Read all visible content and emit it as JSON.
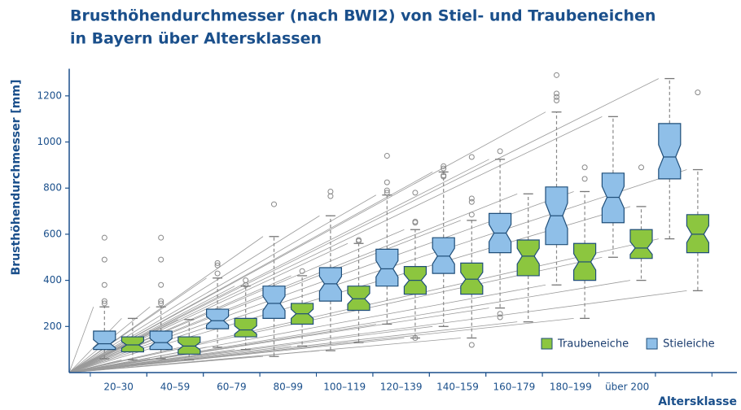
{
  "chart_data": {
    "type": "box",
    "title": [
      "Brusthöhendurchmesser (nach BWI2) von Stiel- und Traubeneichen",
      "in Bayern über Altersklassen"
    ],
    "y_label": "Brusthöhendurchmesser [mm]",
    "x_label": "Altersklasse",
    "categories": [
      "20–30",
      "40–59",
      "60–79",
      "80–99",
      "100–119",
      "120–139",
      "140–159",
      "160–179",
      "180–199",
      "über 200",
      null
    ],
    "ylim": [
      0,
      1300
    ],
    "yticks": [
      200,
      400,
      600,
      800,
      1000,
      1200
    ],
    "legend": "lower right",
    "notch": true,
    "series": [
      {
        "name": "Traubeneiche",
        "color": "#8cc63f",
        "values": [
          {
            "whislo": 55,
            "q1": 90,
            "med": 120,
            "q3": 155,
            "whishi": 235,
            "fliers": []
          },
          {
            "whislo": 55,
            "q1": 80,
            "med": 115,
            "q3": 155,
            "whishi": 230,
            "fliers": []
          },
          {
            "whislo": 100,
            "q1": 155,
            "med": 185,
            "q3": 235,
            "whishi": 375,
            "fliers": [
              380,
              400
            ]
          },
          {
            "whislo": 115,
            "q1": 210,
            "med": 255,
            "q3": 300,
            "whishi": 420,
            "fliers": [
              440
            ]
          },
          {
            "whislo": 130,
            "q1": 270,
            "med": 320,
            "q3": 375,
            "whishi": 560,
            "fliers": [
              570,
              575
            ]
          },
          {
            "whislo": 150,
            "q1": 340,
            "med": 400,
            "q3": 460,
            "whishi": 620,
            "fliers": [
              650,
              655,
              780,
              150
            ]
          },
          {
            "whislo": 150,
            "q1": 340,
            "med": 405,
            "q3": 475,
            "whishi": 660,
            "fliers": [
              685,
              740,
              755,
              935,
              120
            ]
          },
          {
            "whislo": 220,
            "q1": 420,
            "med": 505,
            "q3": 575,
            "whishi": 775,
            "fliers": []
          },
          {
            "whislo": 235,
            "q1": 400,
            "med": 480,
            "q3": 560,
            "whishi": 785,
            "fliers": [
              840,
              890
            ]
          },
          {
            "whislo": 400,
            "q1": 495,
            "med": 540,
            "q3": 620,
            "whishi": 720,
            "fliers": [
              890
            ]
          },
          {
            "whislo": 355,
            "q1": 520,
            "med": 600,
            "q3": 685,
            "whishi": 880,
            "fliers": [
              1215
            ]
          }
        ]
      },
      {
        "name": "Stieleiche",
        "color": "#8fbfe8",
        "values": [
          {
            "whislo": 60,
            "q1": 100,
            "med": 125,
            "q3": 180,
            "whishi": 285,
            "fliers": [
              300,
              310,
              380,
              490,
              585
            ]
          },
          {
            "whislo": 60,
            "q1": 100,
            "med": 130,
            "q3": 180,
            "whishi": 285,
            "fliers": [
              300,
              310,
              380,
              490,
              585
            ]
          },
          {
            "whislo": 110,
            "q1": 190,
            "med": 225,
            "q3": 275,
            "whishi": 410,
            "fliers": [
              430,
              465,
              475
            ]
          },
          {
            "whislo": 70,
            "q1": 235,
            "med": 300,
            "q3": 375,
            "whishi": 590,
            "fliers": [
              730
            ]
          },
          {
            "whislo": 95,
            "q1": 310,
            "med": 385,
            "q3": 455,
            "whishi": 680,
            "fliers": [
              765,
              785
            ]
          },
          {
            "whislo": 210,
            "q1": 375,
            "med": 450,
            "q3": 535,
            "whishi": 770,
            "fliers": [
              780,
              790,
              825,
              940
            ]
          },
          {
            "whislo": 200,
            "q1": 430,
            "med": 505,
            "q3": 585,
            "whishi": 870,
            "fliers": [
              850,
              855,
              885,
              895
            ]
          },
          {
            "whislo": 280,
            "q1": 520,
            "med": 605,
            "q3": 690,
            "whishi": 925,
            "fliers": [
              960,
              240,
              255
            ]
          },
          {
            "whislo": 380,
            "q1": 555,
            "med": 680,
            "q3": 805,
            "whishi": 1130,
            "fliers": [
              1180,
              1195,
              1210,
              1290
            ]
          },
          {
            "whislo": 500,
            "q1": 650,
            "med": 760,
            "q3": 865,
            "whishi": 1110,
            "fliers": []
          },
          {
            "whislo": 580,
            "q1": 840,
            "med": 935,
            "q3": 1080,
            "whishi": 1275,
            "fliers": []
          }
        ]
      }
    ]
  }
}
